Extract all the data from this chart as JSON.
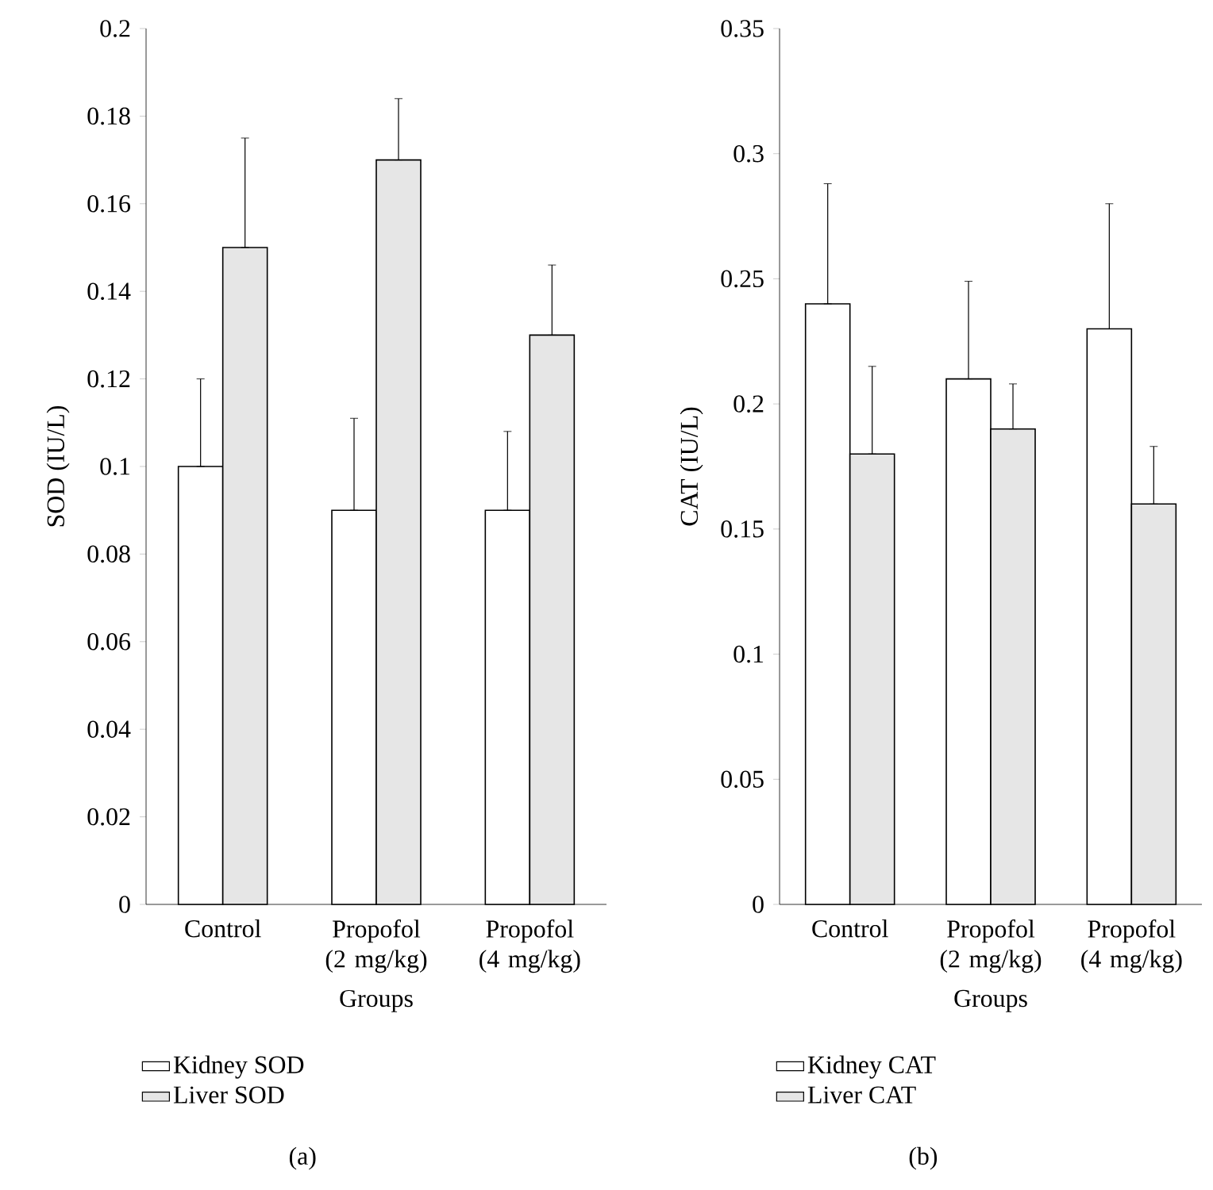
{
  "chart_data": [
    {
      "type": "bar",
      "ylabel": "SOD (IU/L)",
      "xlabel": "Groups",
      "categories": [
        "Control",
        "Propofol (2 mg/kg)",
        "Propofol (4 mg/kg)"
      ],
      "ylim": [
        0,
        0.2
      ],
      "yticks": [
        0,
        0.02,
        0.04,
        0.06,
        0.08,
        0.1,
        0.12,
        0.14,
        0.16,
        0.18,
        0.2
      ],
      "legend": "bottom",
      "annotations": [
        "(a)"
      ],
      "series": [
        {
          "name": "Kidney SOD",
          "color": "#ffffff",
          "values": [
            0.1,
            0.09,
            0.09
          ],
          "errors": [
            [
              0.1,
              0.12
            ],
            [
              0.09,
              0.111
            ],
            [
              0.09,
              0.108
            ]
          ]
        },
        {
          "name": "Liver SOD",
          "color": "#e6e6e6",
          "values": [
            0.15,
            0.17,
            0.13
          ],
          "errors": [
            [
              0.15,
              0.175
            ],
            [
              0.17,
              0.184
            ],
            [
              0.13,
              0.146
            ]
          ]
        }
      ]
    },
    {
      "type": "bar",
      "ylabel": "CAT (IU/L)",
      "xlabel": "Groups",
      "categories": [
        "Control",
        "Propofol (2 mg/kg)",
        "Propofol (4 mg/kg)"
      ],
      "ylim": [
        0,
        0.35
      ],
      "yticks": [
        0,
        0.05,
        0.1,
        0.15,
        0.2,
        0.25,
        0.3,
        0.35
      ],
      "legend": "bottom",
      "annotations": [
        "(b)"
      ],
      "series": [
        {
          "name": "Kidney CAT",
          "color": "#ffffff",
          "values": [
            0.24,
            0.21,
            0.23
          ],
          "errors": [
            [
              0.24,
              0.288
            ],
            [
              0.21,
              0.249
            ],
            [
              0.23,
              0.28
            ]
          ]
        },
        {
          "name": "Liver CAT",
          "color": "#e6e6e6",
          "values": [
            0.18,
            0.19,
            0.16
          ],
          "errors": [
            [
              0.18,
              0.215
            ],
            [
              0.19,
              0.208
            ],
            [
              0.16,
              0.183
            ]
          ]
        }
      ]
    }
  ]
}
